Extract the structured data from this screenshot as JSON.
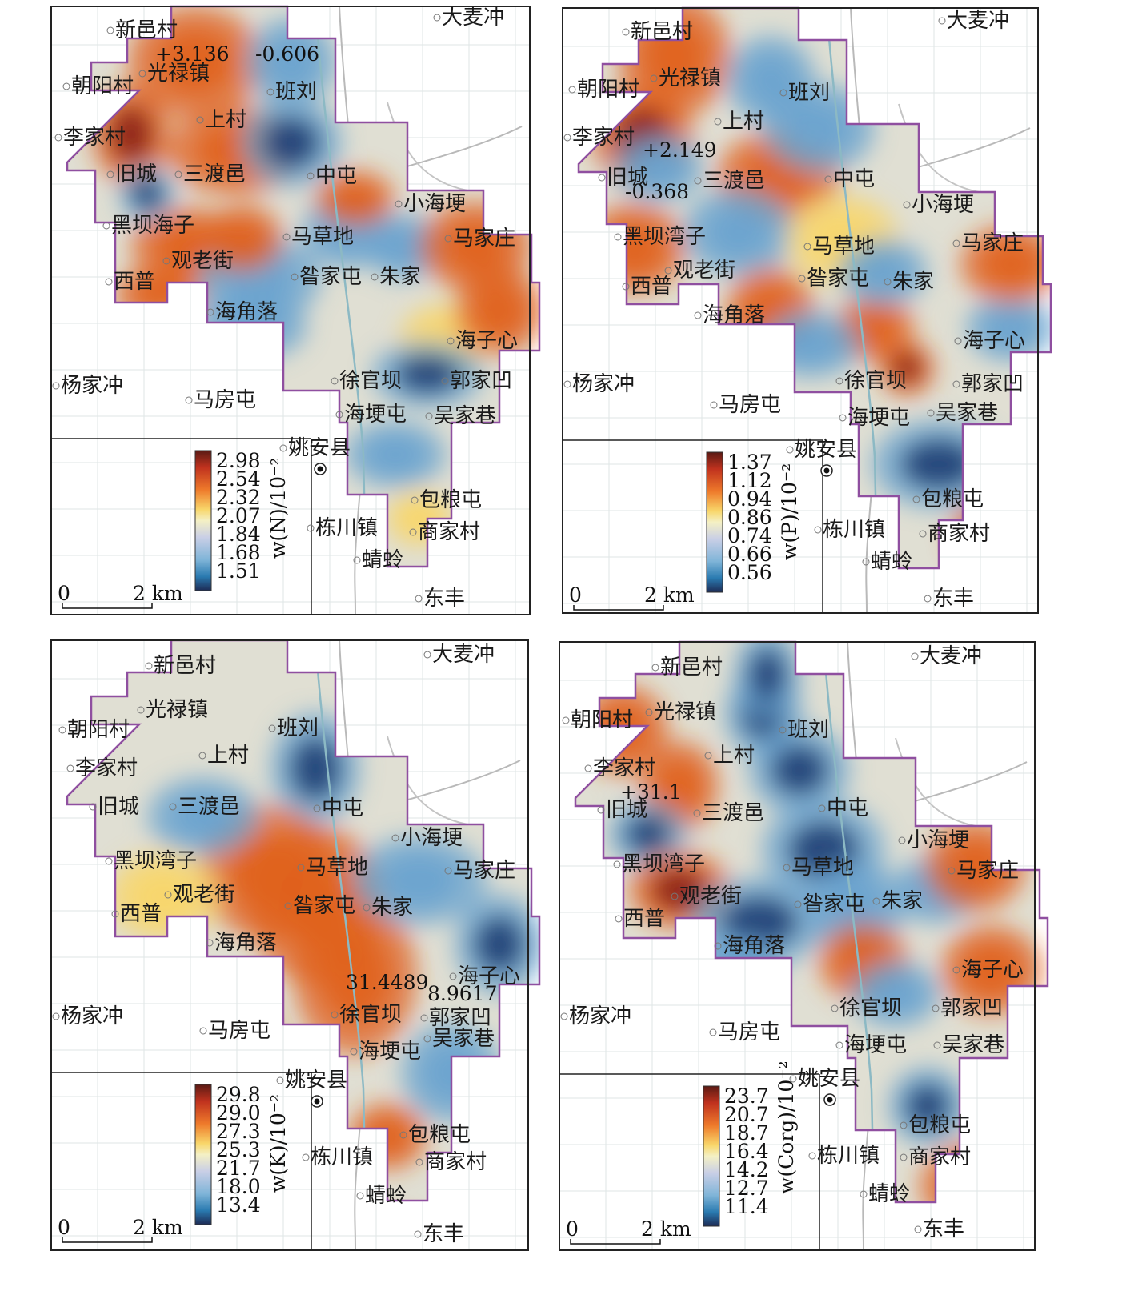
{
  "panels": [
    {
      "id": "N",
      "legend_ticks": [
        "2.98",
        "2.54",
        "2.32",
        "2.07",
        "1.84",
        "1.68",
        "1.51"
      ],
      "unit": "w(N)/10⁻²",
      "extremes": [
        "+3.136",
        "-0.606"
      ],
      "places": [
        "新邑村",
        "大麦冲",
        "光禄镇",
        "朝阳村",
        "班刘",
        "上村",
        "李家村",
        "旧城",
        "三渡邑",
        "中屯",
        "小海埂",
        "黑坝海子",
        "马草地",
        "马家庄",
        "观老街",
        "西普",
        "昝家屯",
        "朱家",
        "海角落",
        "海子心",
        "杨家冲",
        "徐官坝",
        "郭家凹",
        "马房屯",
        "海埂屯",
        "吴家巷",
        "姚安县",
        "包粮屯",
        "栋川镇",
        "商家村",
        "蜻蛉",
        "东丰"
      ]
    },
    {
      "id": "P",
      "legend_ticks": [
        "1.37",
        "1.12",
        "0.94",
        "0.86",
        "0.74",
        "0.66",
        "0.56"
      ],
      "unit": "w(P)/10⁻²",
      "extremes": [
        "+2.149",
        "-0.368"
      ],
      "places": [
        "新邑村",
        "大麦冲",
        "朝阳村",
        "光禄镇",
        "班刘",
        "李家村",
        "上村",
        "旧城",
        "三渡邑",
        "中屯",
        "小海埂",
        "黑坝湾子",
        "马草地",
        "马家庄",
        "观老街",
        "西普",
        "昝家屯",
        "朱家",
        "海角落",
        "海子心",
        "杨家冲",
        "徐官坝",
        "郭家凹",
        "马房屯",
        "海埂屯",
        "吴家巷",
        "姚安县",
        "包粮屯",
        "栋川镇",
        "商家村",
        "蜻蛉",
        "东丰"
      ]
    },
    {
      "id": "K",
      "legend_ticks": [
        "29.8",
        "29.0",
        "27.3",
        "25.3",
        "21.7",
        "18.0",
        "13.4"
      ],
      "unit": "w(K)/10⁻²",
      "extremes": [
        "31.4489",
        "8.9617"
      ],
      "places": [
        "大麦冲",
        "新邑村",
        "光禄镇",
        "朝阳村",
        "班刘",
        "上村",
        "李家村",
        "旧城",
        "三渡邑",
        "中屯",
        "小海埂",
        "黑坝湾子",
        "马草地",
        "马家庄",
        "观老街",
        "昝家屯",
        "朱家",
        "西普",
        "海角落",
        "海子心",
        "杨家冲",
        "徐官坝",
        "郭家凹",
        "吴家巷",
        "马房屯",
        "海埂屯",
        "姚安县",
        "包粮屯",
        "栋川镇",
        "商家村",
        "蜻蛉",
        "东丰"
      ]
    },
    {
      "id": "Corg",
      "legend_ticks": [
        "23.7",
        "20.7",
        "18.7",
        "16.4",
        "14.2",
        "12.7",
        "11.4"
      ],
      "unit": "w(Corg)/10⁻²",
      "extremes": [
        "+31.1"
      ],
      "places": [
        "新邑村",
        "大麦冲",
        "朝阳村",
        "光禄镇",
        "班刘",
        "李家村",
        "上村",
        "旧城",
        "三渡邑",
        "中屯",
        "小海埂",
        "黑坝湾子",
        "马草地",
        "马家庄",
        "观老街",
        "昝家屯",
        "朱家",
        "西普",
        "海角落",
        "海子心",
        "杨家冲",
        "徐官坝",
        "郭家凹",
        "马房屯",
        "海埂屯",
        "吴家巷",
        "姚安县",
        "包粮屯",
        "栋川镇",
        "商家村",
        "蜻蛉",
        "东丰"
      ]
    }
  ],
  "scale_bar": {
    "start": "0",
    "end": "2 km"
  },
  "colors": {
    "low": "#1f3f73",
    "mid_low": "#7fb4d8",
    "neutral": "#f6f1c8",
    "mid_high": "#f6b23c",
    "high": "#c0321e",
    "boundary": "#8f4fa0",
    "river": "#9ec4cf"
  }
}
